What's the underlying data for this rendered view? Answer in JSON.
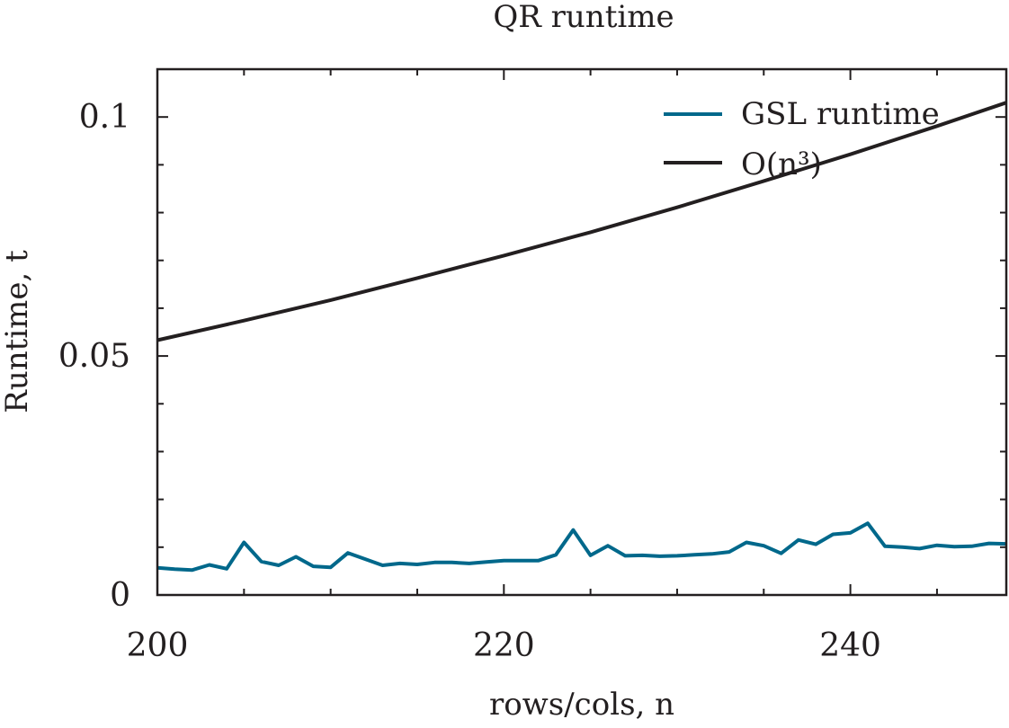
{
  "chart_data": {
    "type": "line",
    "title": "QR runtime",
    "xlabel": "rows/cols, n",
    "ylabel": "Runtime, t",
    "xlim": [
      200,
      249
    ],
    "ylim": [
      0,
      0.11
    ],
    "x_major_ticks": [
      200,
      220,
      240
    ],
    "x_minor_ticks": [
      205,
      210,
      215,
      225,
      230,
      235,
      245
    ],
    "y_major_ticks": [
      0,
      0.05,
      0.1
    ],
    "y_tick_labels": [
      "0",
      "0.05",
      "0.1"
    ],
    "y_minor_ticks": [
      0.01,
      0.02,
      0.03,
      0.04,
      0.06,
      0.07,
      0.08,
      0.09
    ],
    "legend_position": "top-right",
    "grid": false,
    "series": [
      {
        "name": "GSL runtime",
        "color": "#00688b",
        "x": [
          200,
          201,
          202,
          203,
          204,
          205,
          206,
          207,
          208,
          209,
          210,
          211,
          212,
          213,
          214,
          215,
          216,
          217,
          218,
          219,
          220,
          221,
          222,
          223,
          224,
          225,
          226,
          227,
          228,
          229,
          230,
          231,
          232,
          233,
          234,
          235,
          236,
          237,
          238,
          239,
          240,
          241,
          242,
          243,
          244,
          245,
          246,
          247,
          248,
          249
        ],
        "y": [
          0.0057,
          0.0054,
          0.0052,
          0.0063,
          0.0055,
          0.011,
          0.007,
          0.0062,
          0.008,
          0.006,
          0.0058,
          0.0088,
          0.0075,
          0.0062,
          0.0066,
          0.0064,
          0.0068,
          0.0068,
          0.0066,
          0.0069,
          0.0072,
          0.0072,
          0.0072,
          0.0084,
          0.0136,
          0.0083,
          0.0103,
          0.0082,
          0.0083,
          0.0081,
          0.0082,
          0.0084,
          0.0086,
          0.009,
          0.011,
          0.0103,
          0.0087,
          0.0115,
          0.0106,
          0.0127,
          0.013,
          0.015,
          0.0102,
          0.01,
          0.0097,
          0.0104,
          0.0101,
          0.0102,
          0.0108,
          0.0107
        ]
      },
      {
        "name": "O(n³)",
        "color": "#231f20",
        "x": [
          200,
          205,
          210,
          215,
          220,
          225,
          230,
          235,
          240,
          245,
          249
        ],
        "y": [
          0.0533,
          0.0574,
          0.0617,
          0.0663,
          0.071,
          0.0759,
          0.0811,
          0.0866,
          0.0922,
          0.0981,
          0.103
        ]
      }
    ]
  }
}
